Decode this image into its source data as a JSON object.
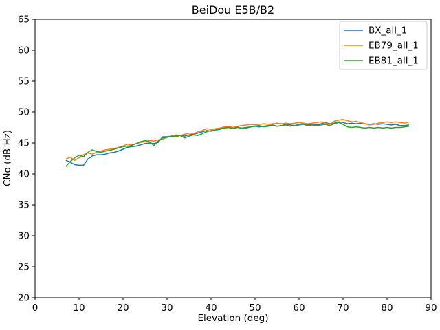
{
  "figure": {
    "background": "#ffffff",
    "spine_color": "#000000",
    "legend_border_color": "#cccccc"
  },
  "chart_data": {
    "type": "line",
    "title": "BeiDou E5B/B2",
    "xlabel": "Elevation (deg)",
    "ylabel": "CNo (dB Hz)",
    "xlim": [
      0,
      90
    ],
    "ylim": [
      20,
      65
    ],
    "xticks": [
      0,
      10,
      20,
      30,
      40,
      50,
      60,
      70,
      80,
      90
    ],
    "yticks": [
      20,
      25,
      30,
      35,
      40,
      45,
      50,
      55,
      60,
      65
    ],
    "grid": false,
    "legend_position": "upper right",
    "x": [
      7,
      8,
      9,
      10,
      11,
      12,
      13,
      14,
      15,
      16,
      17,
      18,
      19,
      20,
      21,
      22,
      23,
      24,
      25,
      26,
      27,
      28,
      29,
      30,
      31,
      32,
      33,
      34,
      35,
      36,
      37,
      38,
      39,
      40,
      41,
      42,
      43,
      44,
      45,
      46,
      47,
      48,
      49,
      50,
      51,
      52,
      53,
      54,
      55,
      56,
      57,
      58,
      59,
      60,
      61,
      62,
      63,
      64,
      65,
      66,
      67,
      68,
      69,
      70,
      71,
      72,
      73,
      74,
      75,
      76,
      77,
      78,
      79,
      80,
      81,
      82,
      83,
      84,
      85
    ],
    "series": [
      {
        "name": "BX_all_1",
        "color": "#1f77b4",
        "values": [
          42.2,
          41.9,
          41.5,
          41.4,
          41.4,
          42.4,
          42.9,
          43.1,
          43.1,
          43.2,
          43.4,
          43.5,
          43.7,
          44.0,
          44.3,
          44.4,
          44.5,
          44.7,
          44.9,
          45.0,
          44.9,
          45.1,
          46.0,
          46.0,
          46.1,
          46.2,
          46.2,
          46.1,
          46.3,
          46.4,
          46.6,
          46.8,
          47.0,
          46.9,
          47.1,
          47.2,
          47.4,
          47.6,
          47.4,
          47.6,
          47.3,
          47.4,
          47.6,
          47.7,
          47.6,
          47.7,
          47.8,
          47.9,
          47.7,
          47.8,
          48.0,
          47.9,
          47.8,
          48.0,
          48.1,
          47.9,
          48.0,
          47.9,
          48.1,
          48.3,
          48.1,
          48.2,
          48.4,
          48.3,
          48.1,
          48.2,
          48.1,
          48.2,
          48.1,
          48.0,
          48.1,
          48.0,
          48.1,
          48.0,
          47.9,
          48.0,
          47.8,
          47.8,
          47.9
        ]
      },
      {
        "name": "EB79_all_1",
        "color": "#ff7f0e",
        "values": [
          42.4,
          42.7,
          42.2,
          42.6,
          43.1,
          43.4,
          43.2,
          43.5,
          43.7,
          43.9,
          44.0,
          44.1,
          44.3,
          44.5,
          44.8,
          44.7,
          44.9,
          45.1,
          45.2,
          45.4,
          45.3,
          45.5,
          45.6,
          45.9,
          46.1,
          46.3,
          46.2,
          46.4,
          46.6,
          46.5,
          46.8,
          47.0,
          47.3,
          47.2,
          47.3,
          47.4,
          47.6,
          47.7,
          47.5,
          47.7,
          47.8,
          47.9,
          48.0,
          47.9,
          48.0,
          48.1,
          48.0,
          48.1,
          48.2,
          48.1,
          48.2,
          48.1,
          48.2,
          48.3,
          48.2,
          48.1,
          48.2,
          48.3,
          48.4,
          48.2,
          48.0,
          48.5,
          48.7,
          48.8,
          48.6,
          48.4,
          48.5,
          48.3,
          48.1,
          47.9,
          48.0,
          48.2,
          48.3,
          48.4,
          48.3,
          48.4,
          48.3,
          48.2,
          48.4
        ]
      },
      {
        "name": "EB81_all_1",
        "color": "#2ca02c",
        "values": [
          41.2,
          42.0,
          42.6,
          43.0,
          42.8,
          43.5,
          43.9,
          43.6,
          43.5,
          43.7,
          43.8,
          44.0,
          44.2,
          44.4,
          44.5,
          44.6,
          44.9,
          45.2,
          45.4,
          45.2,
          44.6,
          45.3,
          45.8,
          45.9,
          46.1,
          46.0,
          46.2,
          45.8,
          46.1,
          46.3,
          46.2,
          46.5,
          46.8,
          47.0,
          47.1,
          47.3,
          47.4,
          47.5,
          47.3,
          47.5,
          47.4,
          47.5,
          47.6,
          47.7,
          47.8,
          47.6,
          47.7,
          47.8,
          47.7,
          47.8,
          47.9,
          47.7,
          47.8,
          47.9,
          48.0,
          47.8,
          47.9,
          47.8,
          47.9,
          48.0,
          47.8,
          48.1,
          48.3,
          48.0,
          47.6,
          47.5,
          47.6,
          47.5,
          47.4,
          47.5,
          47.4,
          47.5,
          47.4,
          47.5,
          47.4,
          47.5,
          47.5,
          47.6,
          47.7
        ]
      }
    ]
  }
}
